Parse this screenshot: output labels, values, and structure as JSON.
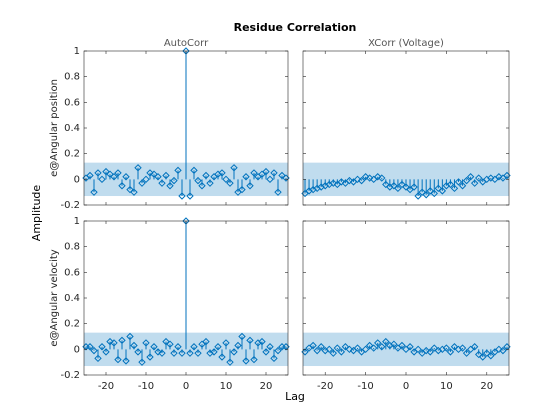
{
  "title": "Residue Correlation",
  "xlabel": "Lag",
  "ylabel": "Amplitude",
  "chart_data": [
    {
      "type": "stem",
      "title": "AutoCorr",
      "ylabel": "e@Angular position",
      "color": "#0072bd",
      "band_color": "#c0dcee",
      "confidence": 0.13,
      "xlim": [
        -25.5,
        25.5
      ],
      "xticks": [
        -20,
        -10,
        0,
        10,
        20
      ],
      "show_xticklabels": false,
      "show_yticklabels": true,
      "ylim": [
        -0.2,
        1
      ],
      "yticks": [
        -0.2,
        0,
        0.2,
        0.4,
        0.6,
        0.8,
        1
      ],
      "x": [
        -25,
        -24,
        -23,
        -22,
        -21,
        -20,
        -19,
        -18,
        -17,
        -16,
        -15,
        -14,
        -13,
        -12,
        -11,
        -10,
        -9,
        -8,
        -7,
        -6,
        -5,
        -4,
        -3,
        -2,
        -1,
        0,
        1,
        2,
        3,
        4,
        5,
        6,
        7,
        8,
        9,
        10,
        11,
        12,
        13,
        14,
        15,
        16,
        17,
        18,
        19,
        20,
        21,
        22,
        23,
        24,
        25
      ],
      "values": [
        0.01,
        0.03,
        -0.1,
        0.05,
        0.0,
        0.06,
        0.04,
        0.02,
        0.05,
        -0.05,
        0.02,
        -0.08,
        -0.1,
        0.09,
        -0.03,
        0.0,
        0.05,
        0.04,
        0.02,
        -0.03,
        0.03,
        -0.05,
        -0.01,
        0.07,
        -0.13,
        1,
        -0.13,
        0.07,
        -0.01,
        -0.05,
        0.03,
        -0.03,
        0.02,
        0.04,
        0.05,
        0.0,
        -0.03,
        0.09,
        -0.1,
        -0.08,
        0.02,
        -0.05,
        0.05,
        0.02,
        0.04,
        0.06,
        0.0,
        0.05,
        -0.1,
        0.03,
        0.01
      ]
    },
    {
      "type": "stem",
      "title": "XCorr (Voltage)",
      "color": "#0072bd",
      "band_color": "#c0dcee",
      "confidence": 0.13,
      "xlim": [
        -25.5,
        25.5
      ],
      "xticks": [
        -20,
        -10,
        0,
        10,
        20
      ],
      "show_xticklabels": false,
      "show_yticklabels": false,
      "ylim": [
        -0.2,
        1
      ],
      "yticks": [
        -0.2,
        0,
        0.2,
        0.4,
        0.6,
        0.8,
        1
      ],
      "x": [
        -25,
        -24,
        -23,
        -22,
        -21,
        -20,
        -19,
        -18,
        -17,
        -16,
        -15,
        -14,
        -13,
        -12,
        -11,
        -10,
        -9,
        -8,
        -7,
        -6,
        -5,
        -4,
        -3,
        -2,
        -1,
        0,
        1,
        2,
        3,
        4,
        5,
        6,
        7,
        8,
        9,
        10,
        11,
        12,
        13,
        14,
        15,
        16,
        17,
        18,
        19,
        20,
        21,
        22,
        23,
        24,
        25
      ],
      "values": [
        -0.11,
        -0.09,
        -0.08,
        -0.07,
        -0.06,
        -0.05,
        -0.04,
        -0.03,
        -0.04,
        -0.02,
        -0.03,
        -0.01,
        -0.02,
        0.0,
        -0.01,
        0.02,
        0.01,
        0.0,
        0.02,
        0.01,
        -0.04,
        -0.06,
        -0.05,
        -0.07,
        -0.04,
        -0.06,
        -0.08,
        -0.06,
        -0.13,
        -0.1,
        -0.12,
        -0.09,
        -0.11,
        -0.07,
        -0.09,
        -0.05,
        -0.04,
        -0.07,
        -0.02,
        -0.05,
        -0.01,
        0.02,
        -0.03,
        0.01,
        -0.02,
        0.0,
        0.01,
        0.0,
        0.02,
        0.01,
        0.03
      ]
    },
    {
      "type": "stem",
      "ylabel": "e@Angular velocity",
      "color": "#0072bd",
      "band_color": "#c0dcee",
      "confidence": 0.13,
      "xlim": [
        -25.5,
        25.5
      ],
      "xticks": [
        -20,
        -10,
        0,
        10,
        20
      ],
      "show_xticklabels": true,
      "show_yticklabels": true,
      "ylim": [
        -0.2,
        1
      ],
      "yticks": [
        -0.2,
        0,
        0.2,
        0.4,
        0.6,
        0.8,
        1
      ],
      "x": [
        -25,
        -24,
        -23,
        -22,
        -21,
        -20,
        -19,
        -18,
        -17,
        -16,
        -15,
        -14,
        -13,
        -12,
        -11,
        -10,
        -9,
        -8,
        -7,
        -6,
        -5,
        -4,
        -3,
        -2,
        -1,
        0,
        1,
        2,
        3,
        4,
        5,
        6,
        7,
        8,
        9,
        10,
        11,
        12,
        13,
        14,
        15,
        16,
        17,
        18,
        19,
        20,
        21,
        22,
        23,
        24,
        25
      ],
      "values": [
        0.02,
        0.02,
        -0.01,
        -0.07,
        0.02,
        -0.02,
        0.06,
        0.05,
        -0.08,
        0.07,
        -0.09,
        0.1,
        0.03,
        -0.02,
        -0.1,
        0.05,
        -0.06,
        0.02,
        -0.02,
        -0.03,
        0.06,
        0.04,
        -0.03,
        0.02,
        -0.03,
        1,
        -0.03,
        0.02,
        -0.03,
        0.04,
        0.06,
        -0.03,
        -0.02,
        0.02,
        -0.06,
        0.05,
        -0.1,
        -0.02,
        0.03,
        0.1,
        -0.09,
        0.07,
        -0.08,
        0.05,
        0.06,
        -0.02,
        0.02,
        -0.07,
        -0.01,
        0.02,
        0.02
      ]
    },
    {
      "type": "stem",
      "color": "#0072bd",
      "band_color": "#c0dcee",
      "confidence": 0.13,
      "xlim": [
        -25.5,
        25.5
      ],
      "xticks": [
        -20,
        -10,
        0,
        10,
        20
      ],
      "show_xticklabels": true,
      "show_yticklabels": false,
      "ylim": [
        -0.2,
        1
      ],
      "yticks": [
        -0.2,
        0,
        0.2,
        0.4,
        0.6,
        0.8,
        1
      ],
      "x": [
        -25,
        -24,
        -23,
        -22,
        -21,
        -20,
        -19,
        -18,
        -17,
        -16,
        -15,
        -14,
        -13,
        -12,
        -11,
        -10,
        -9,
        -8,
        -7,
        -6,
        -5,
        -4,
        -3,
        -2,
        -1,
        0,
        1,
        2,
        3,
        4,
        5,
        6,
        7,
        8,
        9,
        10,
        11,
        12,
        13,
        14,
        15,
        16,
        17,
        18,
        19,
        20,
        21,
        22,
        23,
        24,
        25
      ],
      "values": [
        -0.02,
        0.01,
        0.03,
        -0.01,
        0.02,
        -0.01,
        0.0,
        -0.03,
        0.01,
        -0.02,
        0.02,
        0.0,
        -0.01,
        0.01,
        -0.02,
        0.0,
        0.03,
        0.01,
        0.05,
        0.02,
        0.06,
        0.03,
        0.04,
        0.01,
        0.03,
        0.0,
        0.02,
        -0.02,
        0.0,
        -0.03,
        -0.01,
        -0.02,
        0.01,
        -0.01,
        0.0,
        0.01,
        -0.02,
        0.02,
        0.0,
        0.01,
        -0.03,
        0.0,
        0.02,
        -0.04,
        -0.06,
        -0.03,
        -0.05,
        -0.02,
        0.0,
        -0.01,
        0.02
      ]
    }
  ]
}
